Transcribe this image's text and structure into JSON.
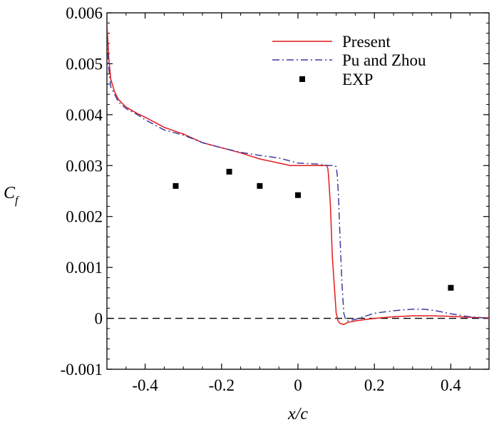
{
  "chart_data": {
    "type": "line",
    "title": "",
    "xlabel": "x/c",
    "ylabel_main": "C",
    "ylabel_sub": "f",
    "xlim": [
      -0.5,
      0.5
    ],
    "ylim": [
      -0.001,
      0.006
    ],
    "x_ticks": [
      -0.4,
      -0.2,
      0,
      0.2,
      0.4
    ],
    "x_tick_labels": [
      "-0.4",
      "-0.2",
      "0",
      "0.2",
      "0.4"
    ],
    "y_ticks": [
      -0.001,
      0,
      0.001,
      0.002,
      0.003,
      0.004,
      0.005,
      0.006
    ],
    "y_tick_labels": [
      "-0.001",
      "0",
      "0.001",
      "0.002",
      "0.003",
      "0.004",
      "0.005",
      "0.006"
    ],
    "grid": false,
    "legend_position": "top-right",
    "reference_line": {
      "y": 0,
      "style": "dashed",
      "color": "#000000"
    },
    "series": [
      {
        "name": "Present",
        "style": "solid",
        "color": "#e31a1c",
        "x": [
          -0.5,
          -0.495,
          -0.49,
          -0.48,
          -0.47,
          -0.45,
          -0.42,
          -0.4,
          -0.35,
          -0.3,
          -0.25,
          -0.2,
          -0.15,
          -0.1,
          -0.05,
          -0.02,
          0,
          0.03,
          0.06,
          0.075,
          0.078,
          0.08,
          0.085,
          0.09,
          0.1,
          0.105,
          0.11,
          0.12,
          0.13,
          0.15,
          0.2,
          0.25,
          0.3,
          0.35,
          0.4,
          0.45,
          0.5
        ],
        "y": [
          0.0058,
          0.0051,
          0.0047,
          0.00445,
          0.0043,
          0.00415,
          0.00402,
          0.00395,
          0.00375,
          0.00362,
          0.00345,
          0.00335,
          0.00325,
          0.00313,
          0.00305,
          0.003,
          0.003,
          0.003,
          0.003,
          0.003,
          0.00295,
          0.0028,
          0.0022,
          0.0012,
          0.0001,
          -5e-05,
          -0.0001,
          -0.00012,
          -8e-05,
          -5e-05,
          0.0,
          3e-05,
          5e-05,
          5e-05,
          4e-05,
          2e-05,
          1e-05
        ]
      },
      {
        "name": "Pu and Zhou",
        "style": "dashdot",
        "color": "#3c3ca0",
        "x": [
          -0.5,
          -0.495,
          -0.49,
          -0.48,
          -0.47,
          -0.45,
          -0.42,
          -0.4,
          -0.35,
          -0.3,
          -0.25,
          -0.2,
          -0.15,
          -0.1,
          -0.05,
          0,
          0.05,
          0.08,
          0.095,
          0.1,
          0.103,
          0.106,
          0.11,
          0.115,
          0.12,
          0.125,
          0.13,
          0.15,
          0.2,
          0.25,
          0.3,
          0.33,
          0.36,
          0.4,
          0.45,
          0.5
        ],
        "y": [
          0.0055,
          0.0049,
          0.00455,
          0.0044,
          0.00425,
          0.00412,
          0.004,
          0.0039,
          0.0037,
          0.0036,
          0.00345,
          0.00335,
          0.00326,
          0.0032,
          0.00315,
          0.00305,
          0.00303,
          0.003,
          0.003,
          0.00298,
          0.0028,
          0.0024,
          0.0016,
          0.0007,
          0.0001,
          -3e-05,
          -5e-05,
          -2e-05,
          0.0001,
          0.00015,
          0.00018,
          0.00018,
          0.00015,
          9e-05,
          3e-05,
          0.0
        ]
      },
      {
        "name": "EXP",
        "style": "marker-square",
        "color": "#000000",
        "x": [
          -0.32,
          -0.18,
          -0.1,
          0.0,
          0.4
        ],
        "y": [
          0.0026,
          0.00288,
          0.0026,
          0.00242,
          0.0006
        ]
      }
    ]
  }
}
